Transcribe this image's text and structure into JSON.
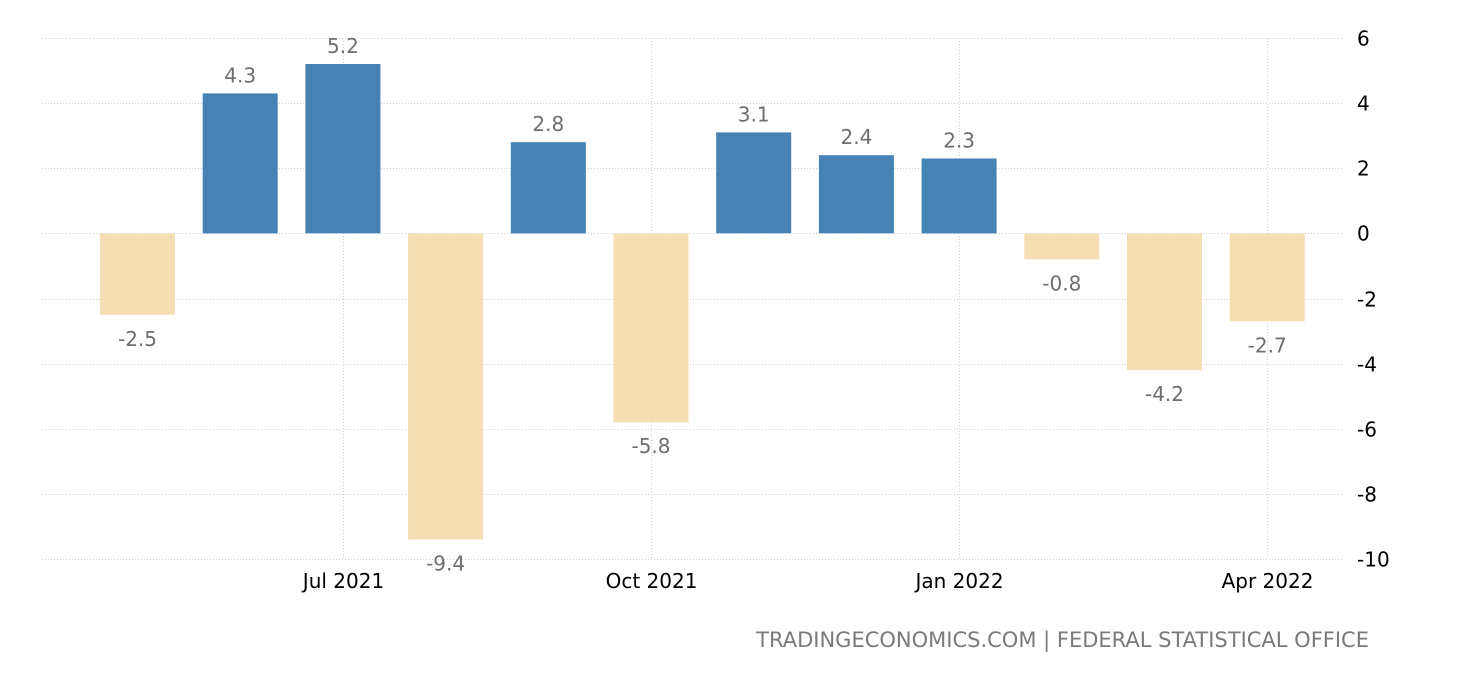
{
  "chart_data": {
    "type": "bar",
    "dates": [
      "2021-05",
      "2021-06",
      "2021-07",
      "2021-08",
      "2021-09",
      "2021-10",
      "2021-11",
      "2021-12",
      "2022-01",
      "2022-02",
      "2022-03",
      "2022-04"
    ],
    "values": [
      -2.5,
      4.3,
      5.2,
      -9.4,
      2.8,
      -5.8,
      3.1,
      2.4,
      2.3,
      -0.8,
      -4.2,
      -2.7
    ],
    "x_tick_labels": [
      {
        "date": "2021-07",
        "label": "Jul 2021"
      },
      {
        "date": "2021-10",
        "label": "Oct 2021"
      },
      {
        "date": "2022-01",
        "label": "Jan 2022"
      },
      {
        "date": "2022-04",
        "label": "Apr 2022"
      }
    ],
    "y_ticks": [
      6,
      4,
      2,
      0,
      -2,
      -4,
      -6,
      -8,
      -10
    ],
    "ylim": [
      -10,
      6
    ],
    "y_axis_side": "right",
    "grid": true,
    "data_labels": true,
    "colors": {
      "positive": "#4682b4",
      "negative": "#f5deb3"
    }
  },
  "source": "TRADINGECONOMICS.COM | FEDERAL STATISTICAL OFFICE"
}
